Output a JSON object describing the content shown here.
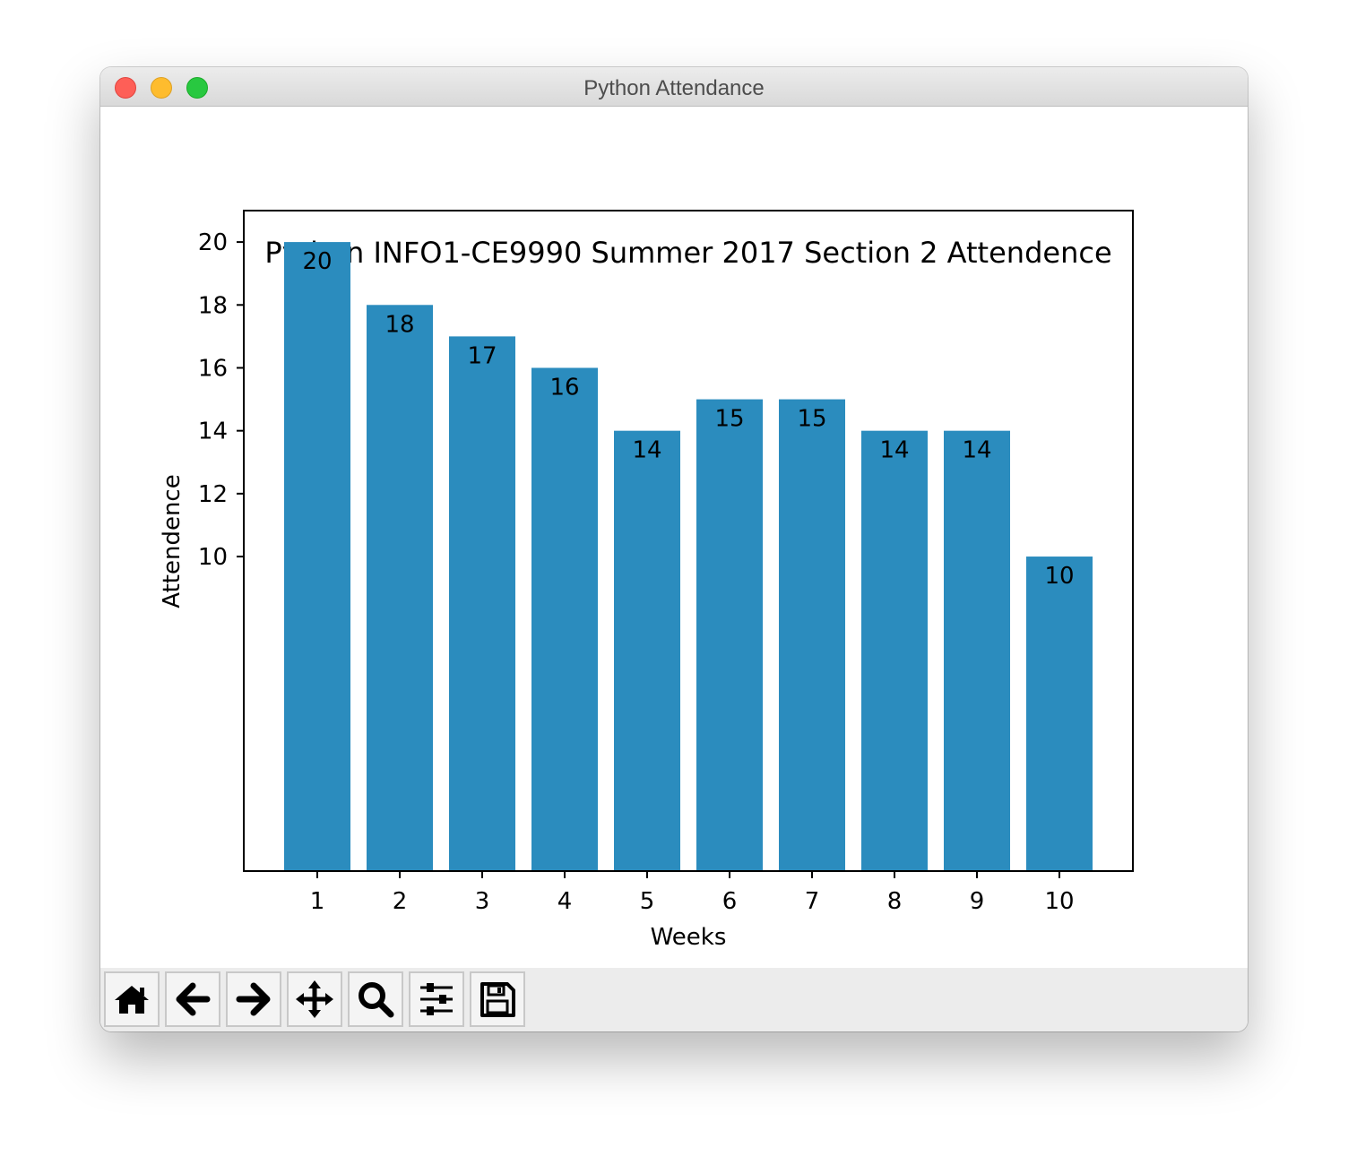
{
  "window": {
    "title": "Python Attendance"
  },
  "toolbar": {
    "buttons": [
      {
        "icon": "home-icon",
        "name": "home-button"
      },
      {
        "icon": "back-arrow-icon",
        "name": "back-button"
      },
      {
        "icon": "forward-arrow-icon",
        "name": "forward-button"
      },
      {
        "icon": "pan-move-icon",
        "name": "pan-button"
      },
      {
        "icon": "zoom-magnifier-icon",
        "name": "zoom-button"
      },
      {
        "icon": "sliders-icon",
        "name": "configure-subplots-button"
      },
      {
        "icon": "save-floppy-icon",
        "name": "save-button"
      }
    ]
  },
  "colors": {
    "bar": "#2b8cbe",
    "axis": "#000000"
  },
  "chart_data": {
    "type": "bar",
    "title": "Python INFO1-CE9990 Summer 2017 Section 2 Attendence",
    "xlabel": "Weeks",
    "ylabel": "Attendence",
    "categories": [
      "1",
      "2",
      "3",
      "4",
      "5",
      "6",
      "7",
      "8",
      "9",
      "10"
    ],
    "values": [
      20,
      18,
      17,
      16,
      14,
      15,
      15,
      14,
      14,
      10
    ],
    "data_labels": [
      "20",
      "18",
      "17",
      "16",
      "14",
      "15",
      "15",
      "14",
      "14",
      "10"
    ],
    "yticks": [
      10,
      12,
      14,
      16,
      18,
      20
    ],
    "ylim": [
      0,
      21
    ],
    "grid": false,
    "legend": false
  }
}
